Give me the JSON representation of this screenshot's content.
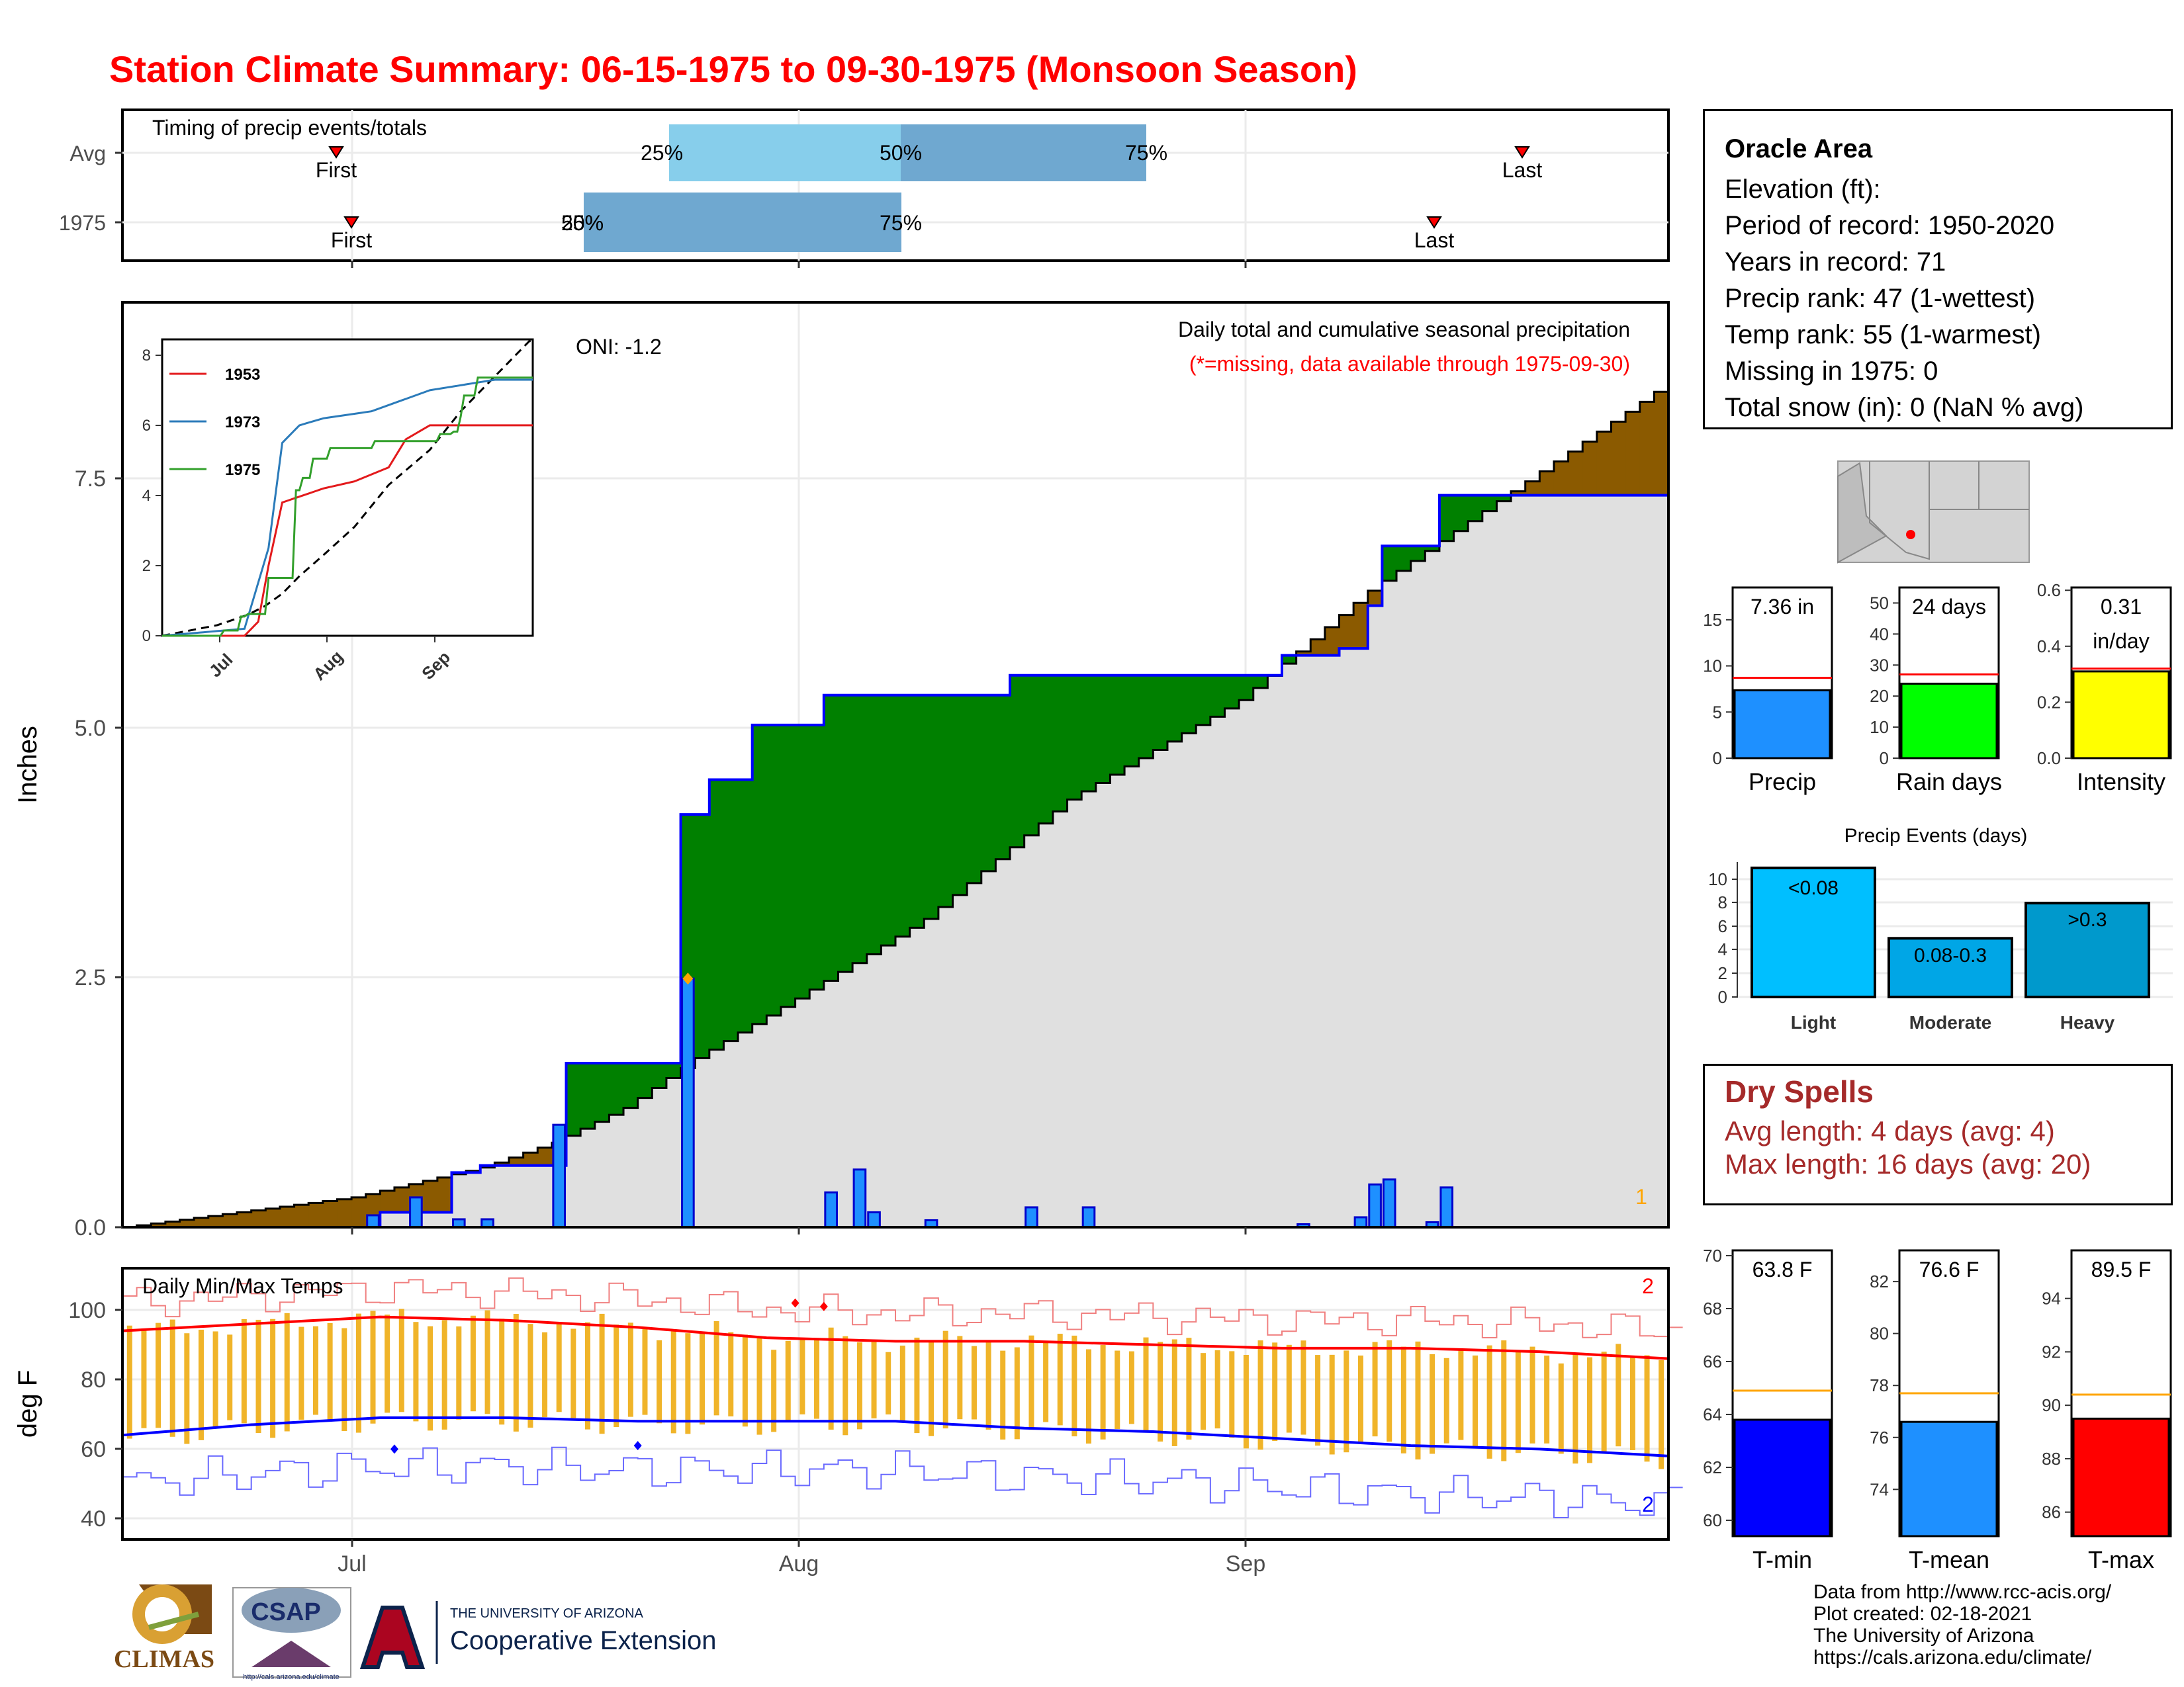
{
  "title": "Station Climate Summary: 06-15-1975 to 09-30-1975 (Monsoon Season)",
  "timing_panel": {
    "label": "Timing of precip events/totals",
    "rows": [
      {
        "name": "Avg",
        "first": "First",
        "last": "Last",
        "p25": "25%",
        "p50": "50%",
        "p75": "75%"
      },
      {
        "name": "1975",
        "first": "First",
        "last": "Last",
        "p25": "25%",
        "p50": "50%",
        "p75": "75%"
      }
    ]
  },
  "station": {
    "name": "Oracle Area",
    "elevation": "Elevation (ft):",
    "period": "Period of record: 1950-2020",
    "years": "Years in record: 71",
    "precip_rank": "Precip rank: 47 (1-wettest)",
    "temp_rank": "Temp rank: 55 (1-warmest)",
    "missing": "Missing in 1975: 0",
    "snow": "Total snow (in): 0 (NaN % avg)"
  },
  "main_panel": {
    "ylabel": "Inches",
    "oni": "ONI: -1.2",
    "caption1": "Daily total and cumulative seasonal precipitation",
    "caption2": "(*=missing, data available through 1975-09-30)",
    "missing_count": "1",
    "yticks": [
      "0.0",
      "2.5",
      "5.0",
      "7.5"
    ],
    "months": [
      "Jul",
      "Aug",
      "Sep"
    ]
  },
  "inset": {
    "legend": [
      "1953",
      "1973",
      "1975"
    ],
    "colors": [
      "#e31a1c",
      "#2b7bba",
      "#33a02c"
    ],
    "yticks": [
      "0",
      "2",
      "4",
      "6",
      "8"
    ],
    "months": [
      "Jul",
      "Aug",
      "Sep"
    ]
  },
  "temp_panel": {
    "label": "Daily Min/Max Temps",
    "ylabel": "deg F",
    "yticks": [
      "40",
      "60",
      "80",
      "100"
    ],
    "months": [
      "Jul",
      "Aug",
      "Sep"
    ],
    "count_max": "2",
    "count_min": "2"
  },
  "bars_precip": [
    {
      "label": "Precip",
      "value_text": "7.36 in",
      "ticks": [
        "0",
        "5",
        "10",
        "15"
      ],
      "color": "#1e90ff"
    },
    {
      "label": "Rain days",
      "value_text": "24 days",
      "ticks": [
        "0",
        "10",
        "20",
        "30",
        "40",
        "50"
      ],
      "color": "#00ff00"
    },
    {
      "label": "Intensity",
      "value_text": "0.31",
      "value_text2": "in/day",
      "ticks": [
        "0.0",
        "0.2",
        "0.4",
        "0.6"
      ],
      "color": "#ffff00"
    }
  ],
  "precip_events": {
    "title": "Precip Events (days)",
    "categories": [
      "Light",
      "Moderate",
      "Heavy"
    ],
    "bar_labels": [
      "<0.08",
      "0.08-0.3",
      ">0.3"
    ],
    "ticks": [
      "0",
      "2",
      "4",
      "6",
      "8",
      "10"
    ]
  },
  "dry_spells": {
    "title": "Dry Spells",
    "avg": "Avg length: 4 days (avg: 4)",
    "max": "Max length: 16 days (avg: 20)"
  },
  "bars_temp": [
    {
      "label": "T-min",
      "value_text": "63.8 F",
      "ticks": [
        "60",
        "62",
        "64",
        "66",
        "68",
        "70"
      ],
      "color": "#0000ff"
    },
    {
      "label": "T-mean",
      "value_text": "76.6 F",
      "ticks": [
        "74",
        "76",
        "78",
        "80",
        "82"
      ],
      "color": "#1e90ff"
    },
    {
      "label": "T-max",
      "value_text": "89.5 F",
      "ticks": [
        "86",
        "88",
        "90",
        "92",
        "94"
      ],
      "color": "#ff0000"
    }
  ],
  "credits": [
    "Data from http://www.rcc-acis.org/",
    "Plot created: 02-18-2021",
    "The University of Arizona",
    "https://cals.arizona.edu/climate/"
  ],
  "logos": {
    "climas": "CLIMAS",
    "csap": "CSAP",
    "csap_url": "http://cals.arizona.edu/climate",
    "ua_small": "THE UNIVERSITY OF ARIZONA",
    "ua_big": "Cooperative Extension"
  },
  "chart_data": [
    {
      "type": "area",
      "title": "Daily total and cumulative seasonal precipitation",
      "ylabel": "Inches",
      "ylim": [
        0,
        9.3
      ],
      "x_range": [
        "1975-06-15",
        "1975-09-30"
      ],
      "series": [
        {
          "name": "1975",
          "x": [
            "06-15",
            "07-01",
            "07-03",
            "07-05",
            "07-08",
            "07-10",
            "07-14",
            "07-16",
            "07-20",
            "07-24",
            "07-25",
            "07-26",
            "07-29",
            "08-03",
            "08-09",
            "08-16",
            "08-21",
            "08-24",
            "09-04",
            "09-08",
            "09-09",
            "09-10",
            "09-11",
            "09-14",
            "09-15",
            "09-30"
          ],
          "values": [
            0.0,
            0.0,
            0.15,
            0.15,
            0.55,
            0.62,
            0.62,
            1.65,
            1.65,
            4.15,
            4.15,
            4.5,
            5.05,
            5.35,
            5.35,
            5.55,
            5.55,
            5.55,
            5.75,
            5.82,
            5.82,
            6.25,
            6.85,
            6.85,
            7.36,
            7.36
          ]
        },
        {
          "name": "Average",
          "x": [
            "06-15",
            "07-01",
            "07-10",
            "07-15",
            "07-20",
            "07-25",
            "08-01",
            "08-10",
            "08-20",
            "09-01",
            "09-10",
            "09-20",
            "09-30"
          ],
          "values": [
            0.0,
            0.3,
            0.6,
            0.85,
            1.2,
            1.7,
            2.3,
            3.1,
            4.3,
            5.3,
            6.4,
            7.4,
            8.4
          ]
        }
      ],
      "daily_bars": [
        {
          "x": "07-02",
          "value": 0.12
        },
        {
          "x": "07-05",
          "value": 0.3
        },
        {
          "x": "07-08",
          "value": 0.08
        },
        {
          "x": "07-10",
          "value": 0.08
        },
        {
          "x": "07-15",
          "value": 1.03
        },
        {
          "x": "07-24",
          "value": 2.5
        },
        {
          "x": "08-03",
          "value": 0.35
        },
        {
          "x": "08-05",
          "value": 0.58
        },
        {
          "x": "08-06",
          "value": 0.15
        },
        {
          "x": "08-10",
          "value": 0.07
        },
        {
          "x": "08-17",
          "value": 0.2
        },
        {
          "x": "08-21",
          "value": 0.2
        },
        {
          "x": "09-05",
          "value": 0.03
        },
        {
          "x": "09-09",
          "value": 0.1
        },
        {
          "x": "09-10",
          "value": 0.43
        },
        {
          "x": "09-11",
          "value": 0.48
        },
        {
          "x": "09-14",
          "value": 0.05
        },
        {
          "x": "09-15",
          "value": 0.4
        }
      ]
    },
    {
      "type": "line",
      "title": "Daily Min/Max Temps",
      "ylabel": "deg F",
      "ylim": [
        33,
        111
      ],
      "series": [
        {
          "name": "avg_max",
          "values": [
            93,
            95,
            97,
            96,
            94,
            91,
            90,
            90,
            89,
            88,
            88,
            87,
            85
          ]
        },
        {
          "name": "avg_min",
          "values": [
            63,
            66,
            68,
            68,
            67,
            67,
            67,
            65,
            64,
            62,
            60,
            59,
            57
          ]
        }
      ]
    },
    {
      "type": "bar",
      "title": "Precip Events (days)",
      "categories": [
        "Light",
        "Moderate",
        "Heavy"
      ],
      "values": [
        11,
        5,
        8
      ],
      "ylim": [
        0,
        11.5
      ]
    }
  ]
}
